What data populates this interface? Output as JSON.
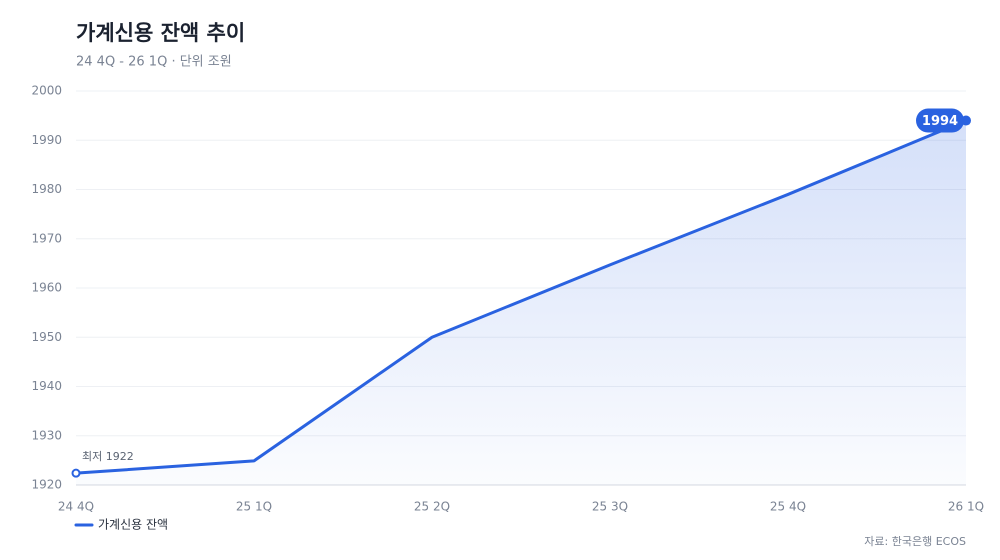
{
  "chart_data": {
    "type": "line",
    "title": "가계신용 잔액 추이",
    "subtitle": "24 4Q - 26 1Q · 단위 조원",
    "source": "자료: 한국은행 ECOS",
    "categories": [
      "24 4Q",
      "25 1Q",
      "25 2Q",
      "25 3Q",
      "25 4Q",
      "26 1Q"
    ],
    "series": [
      {
        "name": "가계신용 잔액",
        "color": "#2a62e0",
        "values": [
          1922.4,
          1924.9,
          1950,
          1964.7,
          1979,
          1994
        ],
        "value_labels": [
          "최저 1922",
          null,
          null,
          null,
          null,
          "1994"
        ]
      }
    ],
    "ylim": [
      1920,
      2000
    ],
    "yticks": [
      1920,
      1930,
      1940,
      1950,
      1960,
      1970,
      1980,
      1990,
      2000
    ],
    "grid": true,
    "area": true,
    "legend": "bottom-left"
  }
}
